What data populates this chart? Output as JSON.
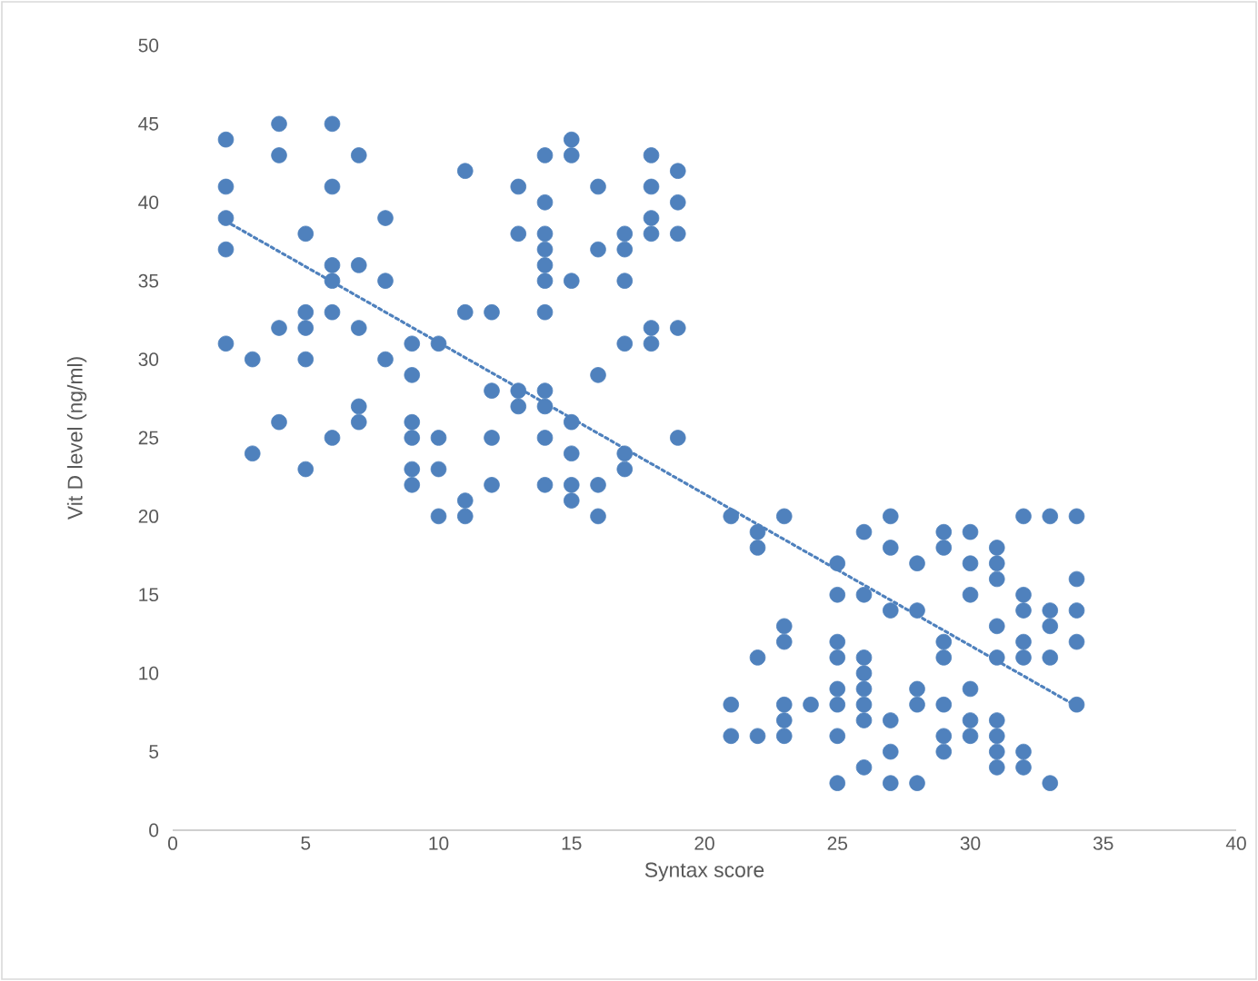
{
  "chart_data": {
    "type": "scatter",
    "xlabel": "Syntax score",
    "ylabel": "Vit D level (ng/ml)",
    "xlim": [
      0,
      40
    ],
    "xticks": [
      0,
      5,
      10,
      15,
      20,
      25,
      30,
      35,
      40
    ],
    "ylim": [
      0,
      50
    ],
    "yticks": [
      0,
      5,
      10,
      15,
      20,
      25,
      30,
      35,
      40,
      45,
      50
    ],
    "grid": false,
    "series": [
      {
        "marker": "circle",
        "color": "#4f81bd",
        "x": [
          2,
          2,
          2,
          2,
          2,
          3,
          3,
          4,
          4,
          4,
          4,
          5,
          5,
          5,
          5,
          5,
          6,
          6,
          6,
          6,
          6,
          6,
          7,
          7,
          7,
          7,
          7,
          8,
          8,
          8,
          9,
          9,
          9,
          9,
          9,
          9,
          10,
          10,
          10,
          10,
          11,
          11,
          11,
          11,
          12,
          12,
          12,
          12,
          13,
          13,
          13,
          13,
          14,
          14,
          14,
          14,
          14,
          14,
          14,
          14,
          14,
          14,
          14,
          15,
          15,
          15,
          15,
          15,
          15,
          15,
          16,
          16,
          16,
          16,
          16,
          17,
          17,
          17,
          17,
          17,
          17,
          18,
          18,
          18,
          18,
          18,
          18,
          19,
          19,
          19,
          19,
          19,
          21,
          21,
          21,
          22,
          22,
          22,
          22,
          23,
          23,
          23,
          23,
          23,
          23,
          24,
          25,
          25,
          25,
          25,
          25,
          25,
          25,
          25,
          26,
          26,
          26,
          26,
          26,
          26,
          26,
          26,
          27,
          27,
          27,
          27,
          27,
          27,
          28,
          28,
          28,
          28,
          28,
          29,
          29,
          29,
          29,
          29,
          29,
          29,
          30,
          30,
          30,
          30,
          30,
          30,
          31,
          31,
          31,
          31,
          31,
          31,
          31,
          31,
          31,
          32,
          32,
          32,
          32,
          32,
          32,
          32,
          33,
          33,
          33,
          33,
          33,
          34,
          34,
          34,
          34,
          34
        ],
        "values": [
          44,
          41,
          39,
          37,
          31,
          30,
          24,
          45,
          43,
          32,
          26,
          38,
          33,
          32,
          30,
          23,
          45,
          41,
          36,
          35,
          33,
          25,
          43,
          36,
          32,
          27,
          26,
          39,
          35,
          30,
          31,
          29,
          26,
          25,
          23,
          22,
          31,
          25,
          23,
          20,
          42,
          33,
          21,
          20,
          33,
          28,
          25,
          22,
          41,
          38,
          28,
          27,
          43,
          40,
          38,
          37,
          36,
          35,
          33,
          28,
          27,
          25,
          22,
          44,
          43,
          35,
          26,
          24,
          22,
          21,
          41,
          37,
          29,
          22,
          20,
          38,
          37,
          35,
          31,
          24,
          23,
          43,
          41,
          39,
          38,
          32,
          31,
          42,
          40,
          38,
          32,
          25,
          20,
          8,
          6,
          19,
          18,
          11,
          6,
          20,
          13,
          12,
          8,
          7,
          6,
          8,
          17,
          15,
          12,
          11,
          9,
          8,
          6,
          3,
          19,
          15,
          11,
          10,
          9,
          8,
          7,
          4,
          20,
          18,
          14,
          7,
          5,
          3,
          17,
          14,
          9,
          8,
          3,
          19,
          18,
          12,
          11,
          8,
          6,
          5,
          19,
          17,
          15,
          9,
          7,
          6,
          18,
          17,
          16,
          13,
          11,
          7,
          6,
          5,
          4,
          20,
          15,
          14,
          12,
          11,
          5,
          4,
          20,
          14,
          13,
          11,
          3,
          20,
          16,
          14,
          12,
          8
        ]
      },
      {
        "type": "line",
        "line_style": "dotted",
        "marker": "none",
        "color": "#4f81bd",
        "x": [
          2,
          34
        ],
        "values": [
          38.8,
          7.9
        ]
      }
    ]
  }
}
